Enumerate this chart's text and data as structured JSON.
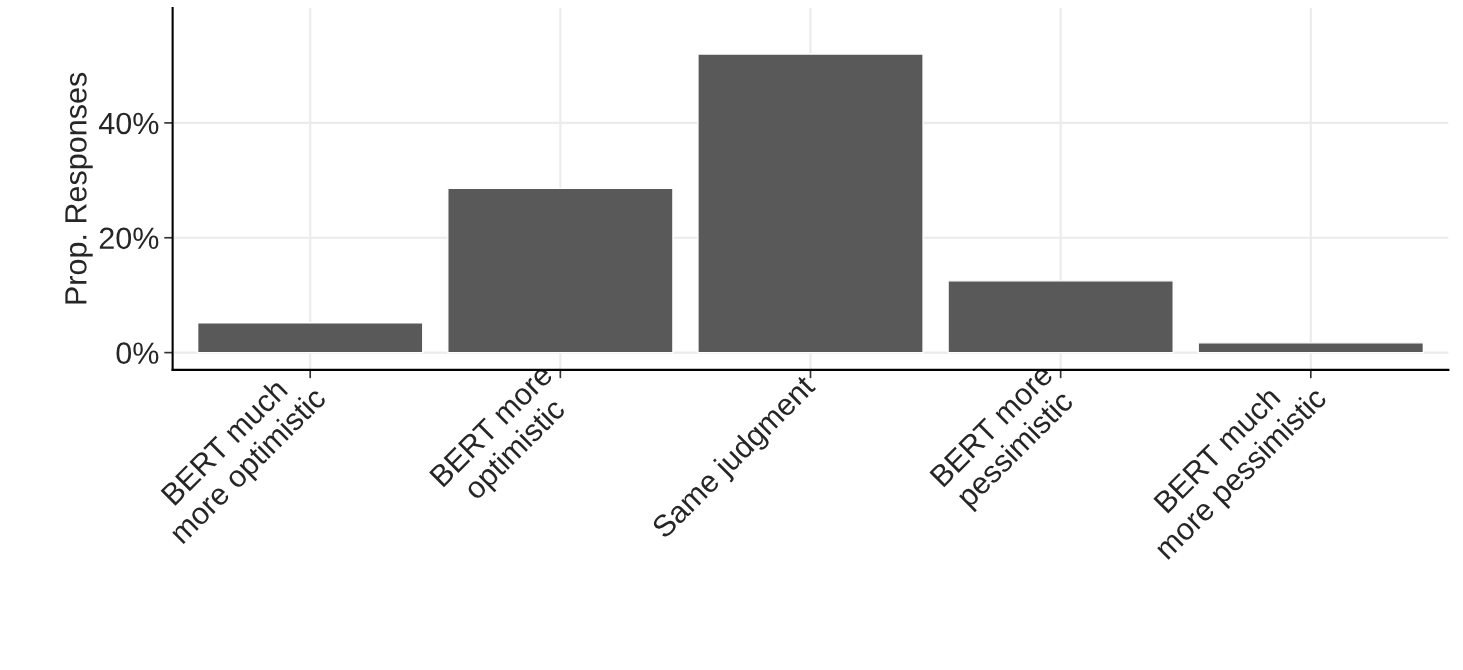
{
  "chart_data": {
    "type": "bar",
    "ylabel": "Prop. Responses",
    "categories": [
      "BERT much\nmore optimistic",
      "BERT more\noptimistic",
      "Same judgment",
      "BERT more\npessimistic",
      "BERT much\nmore pessimistic"
    ],
    "values": [
      5.2,
      28.6,
      52.0,
      12.5,
      1.7
    ],
    "color": "#595959",
    "ylim": [
      -3,
      60
    ],
    "yticks": [
      {
        "value": 0,
        "label": "0%"
      },
      {
        "value": 20,
        "label": "20%"
      },
      {
        "value": 40,
        "label": "40%"
      }
    ],
    "grid": true
  }
}
